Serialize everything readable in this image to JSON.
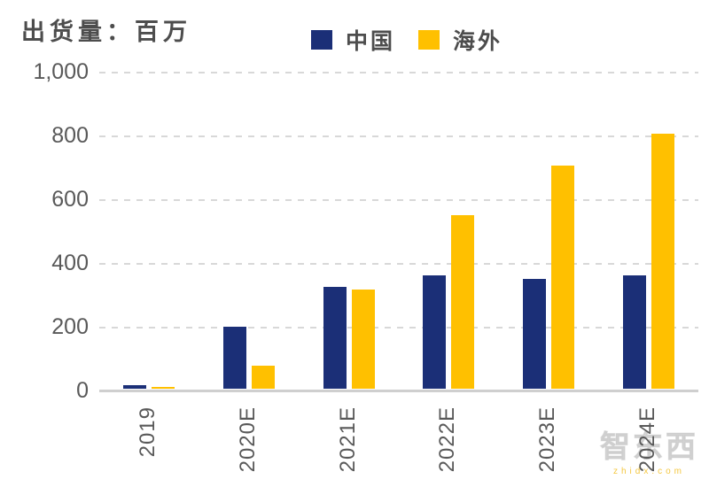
{
  "chart_data": {
    "type": "bar",
    "title": "出货量：百万",
    "categories": [
      "2019",
      "2020E",
      "2021E",
      "2022E",
      "2023E",
      "2024E"
    ],
    "series": [
      {
        "name": "中国",
        "color": "#1B2F77",
        "values": [
          10,
          195,
          320,
          355,
          345,
          355
        ]
      },
      {
        "name": "海外",
        "color": "#FFC000",
        "values": [
          5,
          72,
          310,
          545,
          700,
          800
        ]
      }
    ],
    "ylim": [
      0,
      1000
    ],
    "yticks": [
      {
        "label": "1,000",
        "value": 1000
      },
      {
        "label": "800",
        "value": 800
      },
      {
        "label": "600",
        "value": 600
      },
      {
        "label": "400",
        "value": 400
      },
      {
        "label": "200",
        "value": 200
      },
      {
        "label": "0",
        "value": 0
      }
    ],
    "grid": "dashed-horizontal",
    "legend_position": "top-center",
    "xlabel": "",
    "ylabel": ""
  },
  "colors": {
    "grid": "#D8D8D8",
    "baseline": "#CFCFCF",
    "tick_text": "#595959",
    "title_text": "#4D4D4D"
  },
  "watermark": {
    "logo_text": "智东西",
    "url_text": "zhidx.com"
  }
}
